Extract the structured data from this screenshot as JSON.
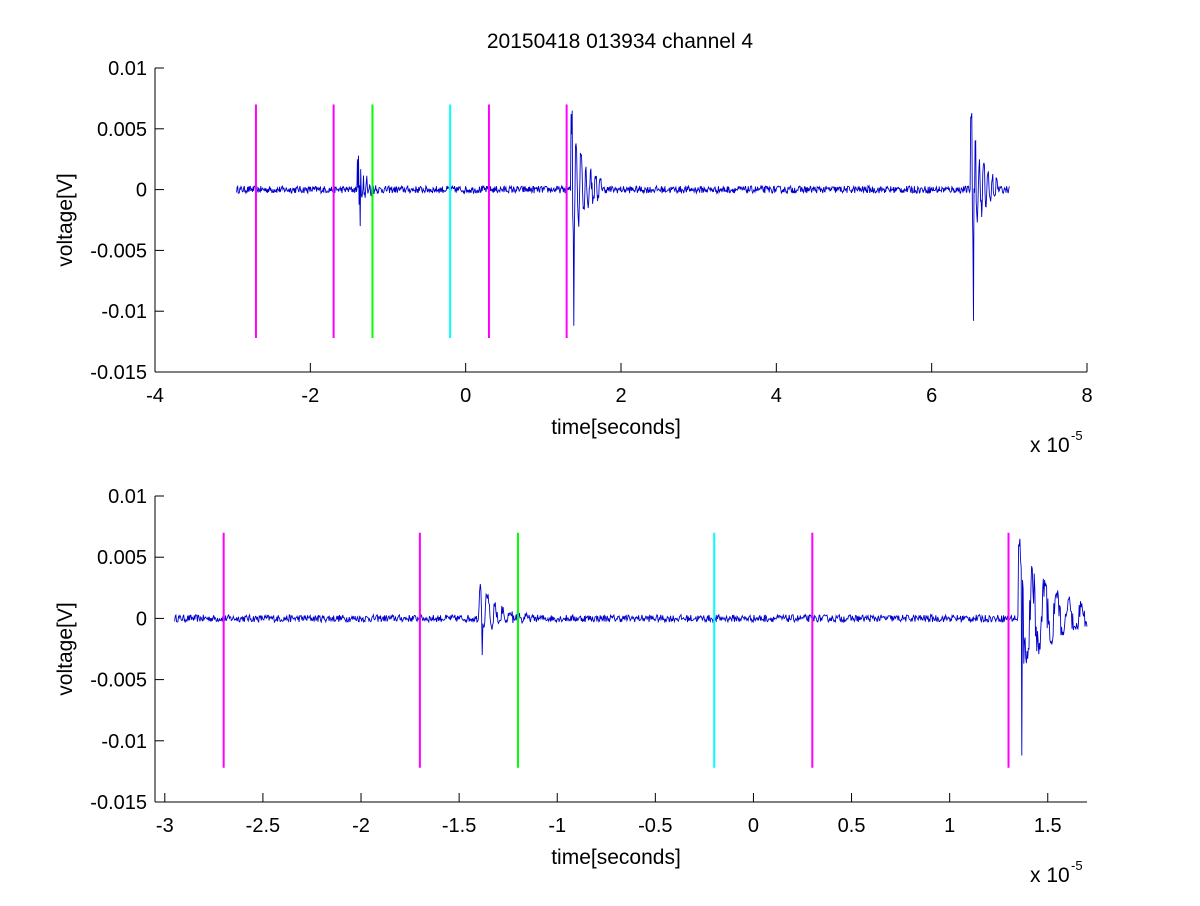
{
  "figure_title": "20150418 013934 channel 4",
  "chart_data": [
    {
      "type": "line",
      "title": "20150418 013934 channel 4",
      "xlabel": "time[seconds]",
      "ylabel": "voltage[V]",
      "x_multiplier_label": "x 10",
      "x_multiplier_exponent": "-5",
      "xlim": [
        -4e-05,
        8e-05
      ],
      "ylim": [
        -0.015,
        0.01
      ],
      "x_ticks": [
        -4e-05,
        -2e-05,
        0,
        2e-05,
        4e-05,
        6e-05,
        8e-05
      ],
      "x_tick_labels": [
        "-4",
        "-2",
        "0",
        "2",
        "4",
        "6",
        "8"
      ],
      "y_ticks": [
        0.01,
        0.005,
        0,
        -0.005,
        -0.01,
        -0.015
      ],
      "y_tick_labels": [
        "0.01",
        "0.005",
        "0",
        "-0.005",
        "-0.01",
        "-0.015"
      ],
      "grid": false,
      "trace": {
        "color": "#0000cc",
        "x_start": -2.95e-05,
        "x_end": 7e-05,
        "baseline": 0,
        "noise_amplitude": 0.0003,
        "bursts": [
          {
            "t": -1.4e-05,
            "duration": 2.5e-06,
            "amplitude": 0.0028,
            "min": -0.003
          },
          {
            "t": 1.35e-05,
            "duration": 4e-06,
            "amplitude": 0.0065,
            "min": -0.0112
          },
          {
            "t": 6.5e-05,
            "duration": 3.5e-06,
            "amplitude": 0.0063,
            "min": -0.0108
          }
        ]
      },
      "markers": [
        {
          "x": -2.7e-05,
          "color": "#ff00ff",
          "y0": -0.0122,
          "y1": 0.007
        },
        {
          "x": -1.7e-05,
          "color": "#ff00ff",
          "y0": -0.0122,
          "y1": 0.007
        },
        {
          "x": -1.2e-05,
          "color": "#00ff00",
          "y0": -0.0122,
          "y1": 0.007
        },
        {
          "x": -2e-06,
          "color": "#00ffff",
          "y0": -0.0122,
          "y1": 0.007
        },
        {
          "x": 3e-06,
          "color": "#ff00ff",
          "y0": -0.0122,
          "y1": 0.007
        },
        {
          "x": 1.3e-05,
          "color": "#ff00ff",
          "y0": -0.0122,
          "y1": 0.007
        }
      ]
    },
    {
      "type": "line",
      "title": "",
      "xlabel": "time[seconds]",
      "ylabel": "voltage[V]",
      "x_multiplier_label": "x 10",
      "x_multiplier_exponent": "-5",
      "xlim": [
        -3.05e-05,
        1.7e-05
      ],
      "ylim": [
        -0.015,
        0.01
      ],
      "x_ticks": [
        -3e-05,
        -2.5e-05,
        -2e-05,
        -1.5e-05,
        -1e-05,
        -5e-06,
        0,
        5e-06,
        1e-05,
        1.5e-05
      ],
      "x_tick_labels": [
        "-3",
        "-2.5",
        "-2",
        "-1.5",
        "-1",
        "-0.5",
        "0",
        "0.5",
        "1",
        "1.5"
      ],
      "y_ticks": [
        0.01,
        0.005,
        0,
        -0.005,
        -0.01,
        -0.015
      ],
      "y_tick_labels": [
        "0.01",
        "0.005",
        "0",
        "-0.005",
        "-0.01",
        "-0.015"
      ],
      "grid": false,
      "trace": {
        "color": "#0000cc",
        "x_start": -2.95e-05,
        "x_end": 1.7e-05,
        "baseline": 0,
        "noise_amplitude": 0.0003,
        "bursts": [
          {
            "t": -1.4e-05,
            "duration": 2.5e-06,
            "amplitude": 0.0028,
            "min": -0.003
          },
          {
            "t": 1.35e-05,
            "duration": 4e-06,
            "amplitude": 0.0065,
            "min": -0.0112
          }
        ]
      },
      "markers": [
        {
          "x": -2.7e-05,
          "color": "#ff00ff",
          "y0": -0.0122,
          "y1": 0.007
        },
        {
          "x": -1.7e-05,
          "color": "#ff00ff",
          "y0": -0.0122,
          "y1": 0.007
        },
        {
          "x": -1.2e-05,
          "color": "#00ff00",
          "y0": -0.0122,
          "y1": 0.007
        },
        {
          "x": -2e-06,
          "color": "#00ffff",
          "y0": -0.0122,
          "y1": 0.007
        },
        {
          "x": 3e-06,
          "color": "#ff00ff",
          "y0": -0.0122,
          "y1": 0.007
        },
        {
          "x": 1.3e-05,
          "color": "#ff00ff",
          "y0": -0.0122,
          "y1": 0.007
        }
      ]
    }
  ]
}
